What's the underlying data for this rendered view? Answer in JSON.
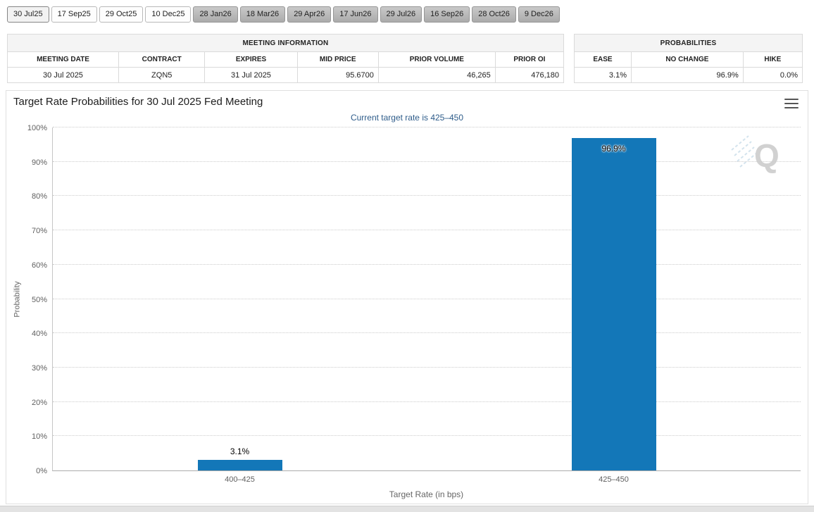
{
  "tabs": [
    {
      "label": "30 Jul25",
      "state": "active"
    },
    {
      "label": "17 Sep25",
      "state": "near"
    },
    {
      "label": "29 Oct25",
      "state": "near"
    },
    {
      "label": "10 Dec25",
      "state": "near"
    },
    {
      "label": "28 Jan26",
      "state": "far"
    },
    {
      "label": "18 Mar26",
      "state": "far"
    },
    {
      "label": "29 Apr26",
      "state": "far"
    },
    {
      "label": "17 Jun26",
      "state": "far"
    },
    {
      "label": "29 Jul26",
      "state": "far"
    },
    {
      "label": "16 Sep26",
      "state": "far"
    },
    {
      "label": "28 Oct26",
      "state": "far"
    },
    {
      "label": "9 Dec26",
      "state": "far"
    }
  ],
  "meeting_table": {
    "title": "MEETING INFORMATION",
    "headers": [
      "MEETING DATE",
      "CONTRACT",
      "EXPIRES",
      "MID PRICE",
      "PRIOR VOLUME",
      "PRIOR OI"
    ],
    "row": [
      "30 Jul 2025",
      "ZQN5",
      "31 Jul 2025",
      "95.6700",
      "46,265",
      "476,180"
    ]
  },
  "prob_table": {
    "title": "PROBABILITIES",
    "headers": [
      "EASE",
      "NO CHANGE",
      "HIKE"
    ],
    "row": [
      "3.1%",
      "96.9%",
      "0.0%"
    ]
  },
  "chart_data": {
    "type": "bar",
    "title": "Target Rate Probabilities for 30 Jul 2025 Fed Meeting",
    "subtitle": "Current target rate is 425–450",
    "categories": [
      "400–425",
      "425–450"
    ],
    "values": [
      3.1,
      96.9
    ],
    "labels": [
      "3.1%",
      "96.9%"
    ],
    "xlabel": "Target Rate (in bps)",
    "ylabel": "Probability",
    "ylim": [
      0,
      100
    ],
    "ytick_step": 10,
    "yticks": [
      "0%",
      "10%",
      "20%",
      "30%",
      "40%",
      "50%",
      "60%",
      "70%",
      "80%",
      "90%",
      "100%"
    ],
    "grid": "dotted-horizontal",
    "legend": "none",
    "bar_color": "#1377b8",
    "watermark": "Q"
  }
}
